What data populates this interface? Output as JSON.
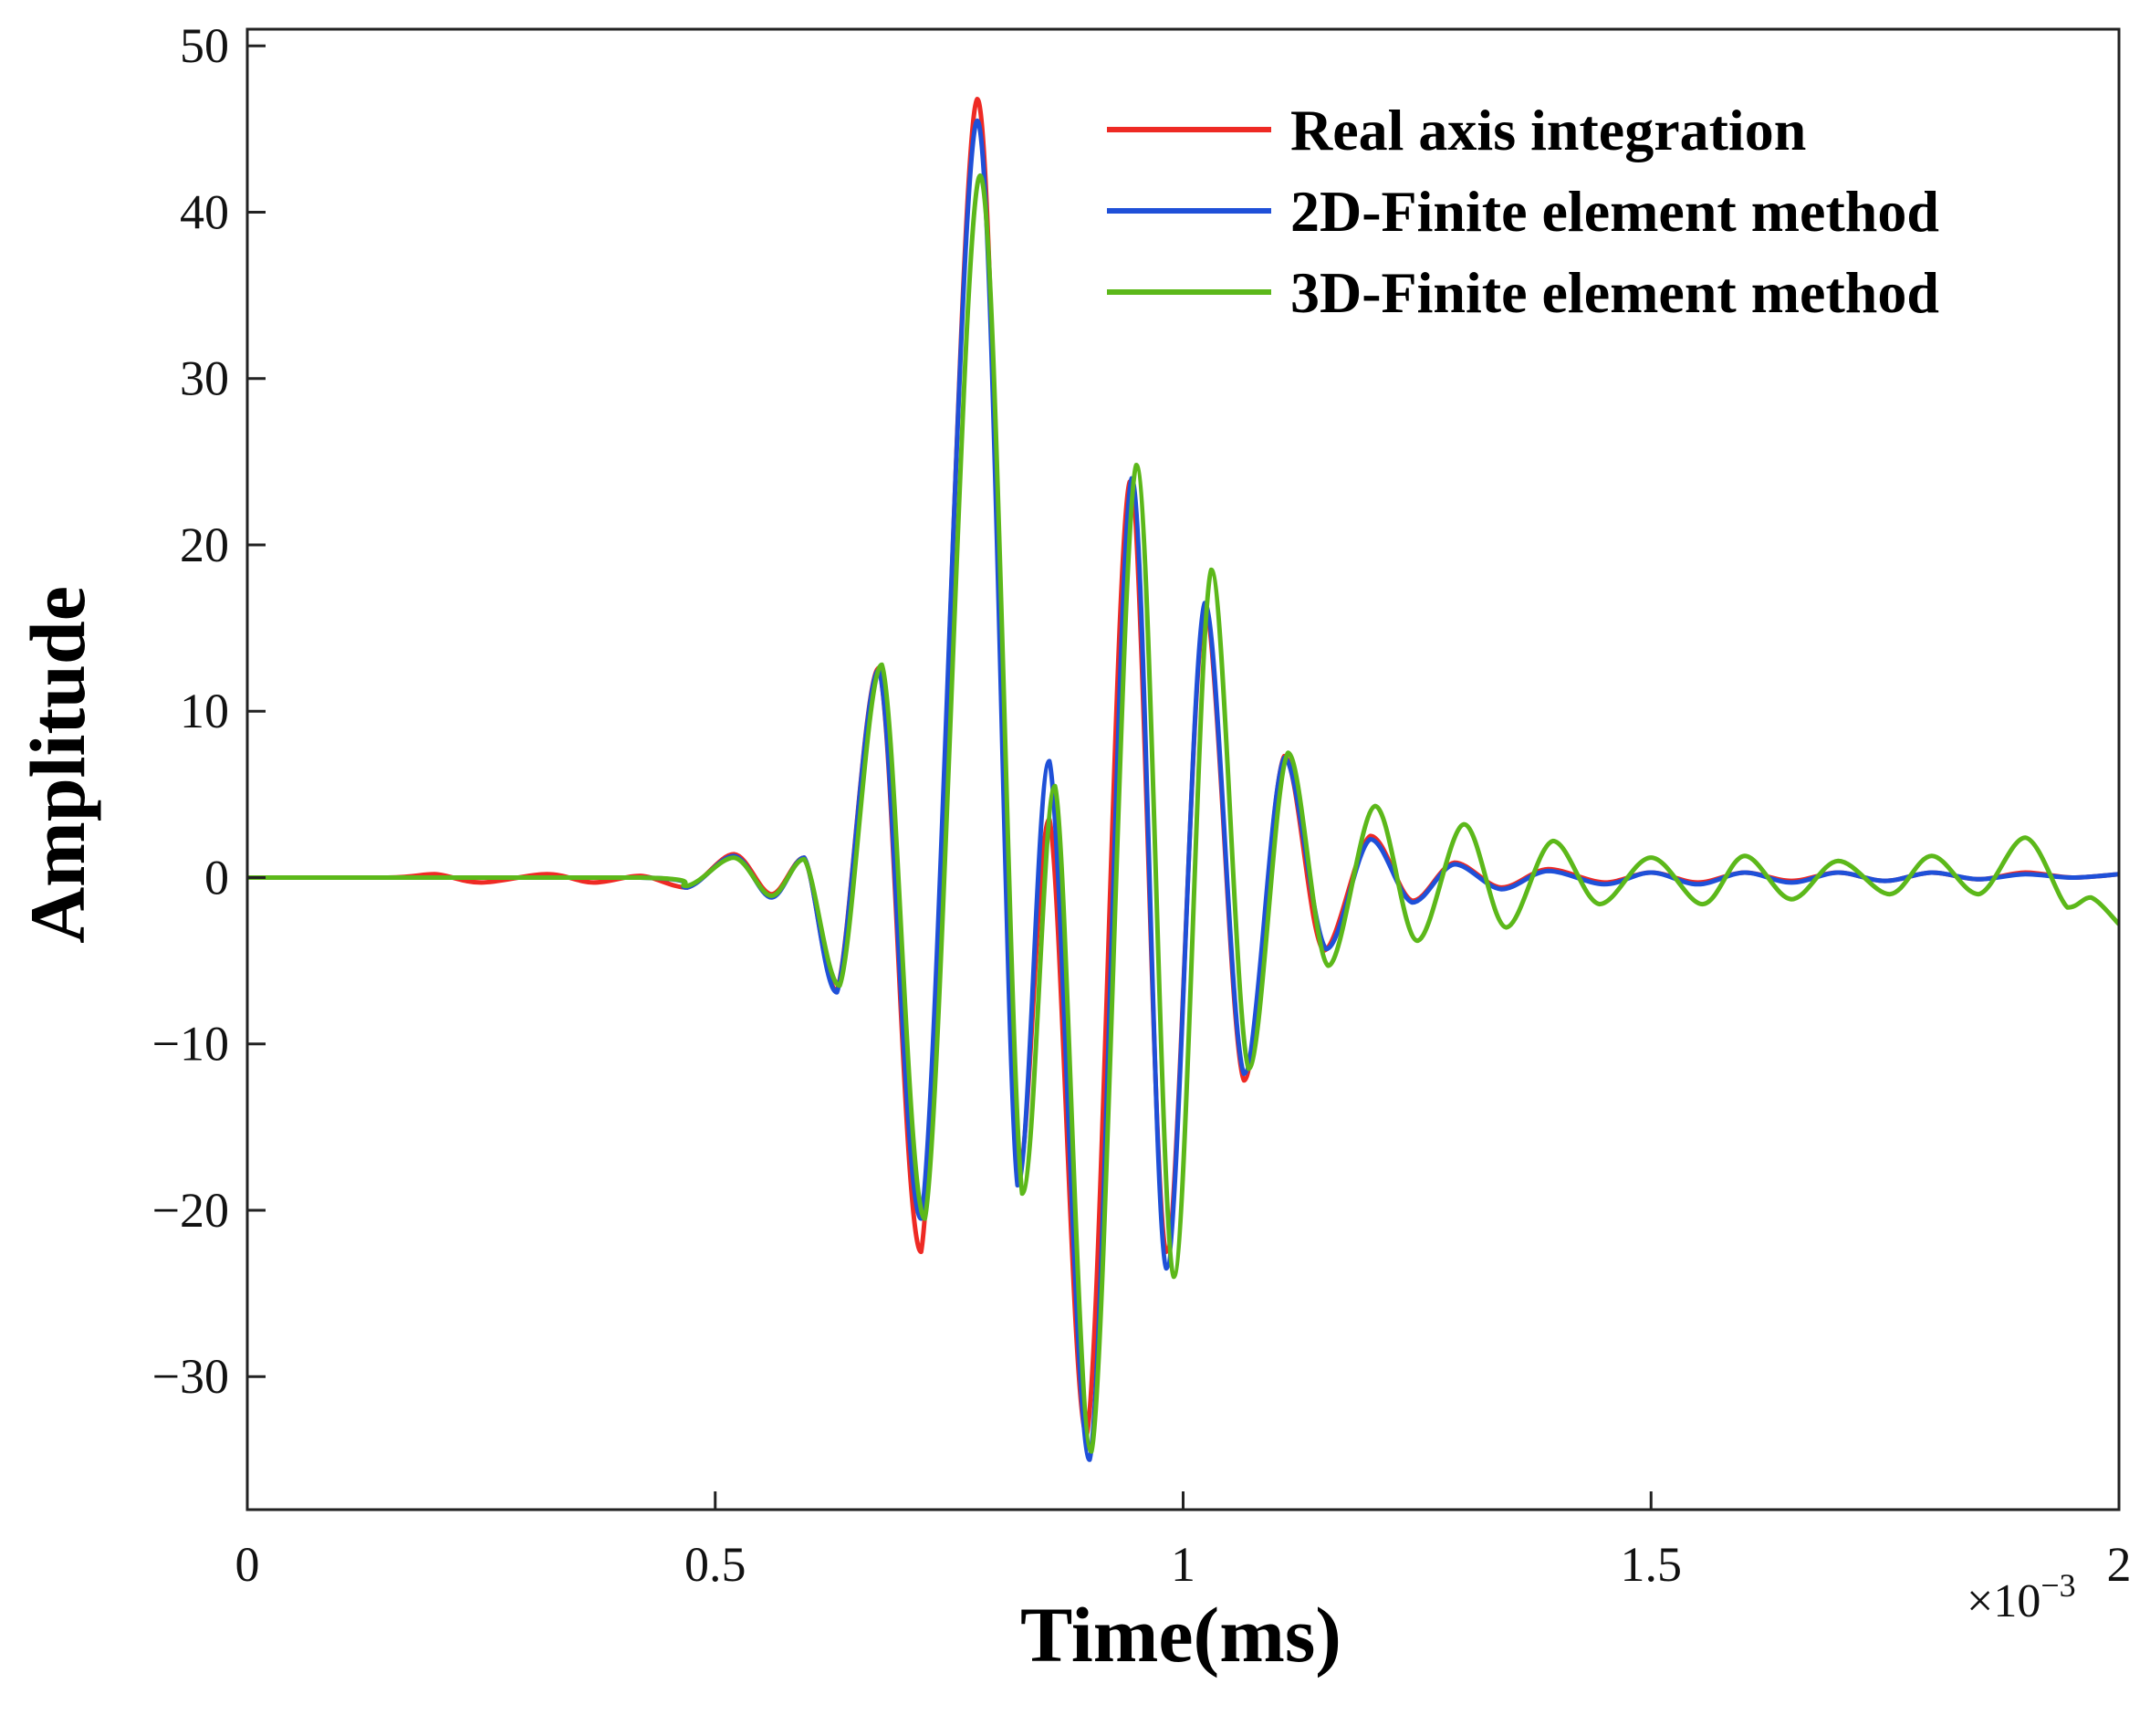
{
  "chart_data": {
    "type": "line",
    "xlabel": "Time(ms)",
    "ylabel": "Amplitude",
    "x_multiplier_prefix": "×10",
    "x_multiplier_exp": "−3",
    "xlim": [
      0,
      2
    ],
    "ylim": [
      -38,
      51
    ],
    "xticks": [
      0,
      0.5,
      1,
      1.5,
      2
    ],
    "xtick_labels": [
      "0",
      "0.5",
      "1",
      "1.5",
      "2"
    ],
    "yticks": [
      -30,
      -20,
      -10,
      0,
      10,
      20,
      30,
      40,
      50
    ],
    "ytick_labels": [
      "−30",
      "−20",
      "−10",
      "0",
      "10",
      "20",
      "30",
      "40",
      "50"
    ],
    "grid": false,
    "legend_position": "top-right",
    "series": [
      {
        "name": "Real axis integration",
        "color": "#ee2a24",
        "points": [
          [
            0,
            0
          ],
          [
            0.15,
            0
          ],
          [
            0.2,
            0.2
          ],
          [
            0.25,
            -0.3
          ],
          [
            0.32,
            0.2
          ],
          [
            0.37,
            -0.3
          ],
          [
            0.42,
            0.1
          ],
          [
            0.47,
            -0.6
          ],
          [
            0.52,
            1.4
          ],
          [
            0.56,
            -1.0
          ],
          [
            0.595,
            1.2
          ],
          [
            0.63,
            -6.8
          ],
          [
            0.675,
            12.6
          ],
          [
            0.72,
            -22.5
          ],
          [
            0.78,
            46.8
          ],
          [
            0.823,
            -18.0
          ],
          [
            0.857,
            3.5
          ],
          [
            0.897,
            -33.5
          ],
          [
            0.943,
            23.8
          ],
          [
            0.982,
            -22.5
          ],
          [
            1.023,
            16.0
          ],
          [
            1.065,
            -12.2
          ],
          [
            1.108,
            7.3
          ],
          [
            1.15,
            -4.4
          ],
          [
            1.2,
            2.5
          ],
          [
            1.245,
            -1.4
          ],
          [
            1.29,
            0.9
          ],
          [
            1.34,
            -0.6
          ],
          [
            1.39,
            0.5
          ],
          [
            1.45,
            -0.3
          ],
          [
            1.5,
            0.3
          ],
          [
            1.55,
            -0.3
          ],
          [
            1.6,
            0.3
          ],
          [
            1.65,
            -0.2
          ],
          [
            1.7,
            0.3
          ],
          [
            1.75,
            -0.2
          ],
          [
            1.8,
            0.3
          ],
          [
            1.85,
            -0.1
          ],
          [
            1.9,
            0.3
          ],
          [
            1.95,
            0
          ],
          [
            2,
            0.2
          ]
        ]
      },
      {
        "name": "2D-Finite element method",
        "color": "#1f50d8",
        "points": [
          [
            0,
            0
          ],
          [
            0.42,
            0
          ],
          [
            0.47,
            -0.6
          ],
          [
            0.52,
            1.3
          ],
          [
            0.56,
            -1.2
          ],
          [
            0.595,
            1.2
          ],
          [
            0.63,
            -6.9
          ],
          [
            0.675,
            12.5
          ],
          [
            0.72,
            -20.5
          ],
          [
            0.78,
            45.5
          ],
          [
            0.823,
            -18.5
          ],
          [
            0.857,
            7.0
          ],
          [
            0.9,
            -35.0
          ],
          [
            0.945,
            24.0
          ],
          [
            0.982,
            -23.5
          ],
          [
            1.023,
            16.5
          ],
          [
            1.065,
            -11.8
          ],
          [
            1.108,
            7.2
          ],
          [
            1.153,
            -4.3
          ],
          [
            1.2,
            2.3
          ],
          [
            1.245,
            -1.5
          ],
          [
            1.29,
            0.8
          ],
          [
            1.34,
            -0.7
          ],
          [
            1.39,
            0.4
          ],
          [
            1.45,
            -0.4
          ],
          [
            1.5,
            0.3
          ],
          [
            1.55,
            -0.4
          ],
          [
            1.6,
            0.3
          ],
          [
            1.65,
            -0.3
          ],
          [
            1.7,
            0.3
          ],
          [
            1.75,
            -0.2
          ],
          [
            1.8,
            0.3
          ],
          [
            1.85,
            -0.1
          ],
          [
            1.9,
            0.2
          ],
          [
            1.95,
            0
          ],
          [
            2,
            0.2
          ]
        ]
      },
      {
        "name": "3D-Finite element method",
        "color": "#5cb81a",
        "points": [
          [
            0,
            0
          ],
          [
            0.42,
            0
          ],
          [
            0.47,
            -0.5
          ],
          [
            0.52,
            1.2
          ],
          [
            0.56,
            -1.1
          ],
          [
            0.595,
            1.1
          ],
          [
            0.633,
            -6.5
          ],
          [
            0.678,
            12.8
          ],
          [
            0.724,
            -20.5
          ],
          [
            0.783,
            42.2
          ],
          [
            0.828,
            -19.0
          ],
          [
            0.863,
            5.5
          ],
          [
            0.902,
            -34.5
          ],
          [
            0.95,
            24.8
          ],
          [
            0.99,
            -24.0
          ],
          [
            1.03,
            18.5
          ],
          [
            1.07,
            -11.5
          ],
          [
            1.112,
            7.5
          ],
          [
            1.155,
            -5.3
          ],
          [
            1.205,
            4.3
          ],
          [
            1.25,
            -3.8
          ],
          [
            1.3,
            3.2
          ],
          [
            1.345,
            -3.0
          ],
          [
            1.395,
            2.2
          ],
          [
            1.445,
            -1.6
          ],
          [
            1.5,
            1.2
          ],
          [
            1.555,
            -1.6
          ],
          [
            1.6,
            1.3
          ],
          [
            1.65,
            -1.3
          ],
          [
            1.7,
            1.0
          ],
          [
            1.755,
            -1.0
          ],
          [
            1.8,
            1.3
          ],
          [
            1.85,
            -1.0
          ],
          [
            1.9,
            2.4
          ],
          [
            1.945,
            -1.8
          ],
          [
            1.97,
            -1.2
          ],
          [
            2,
            -2.8
          ]
        ]
      }
    ]
  }
}
